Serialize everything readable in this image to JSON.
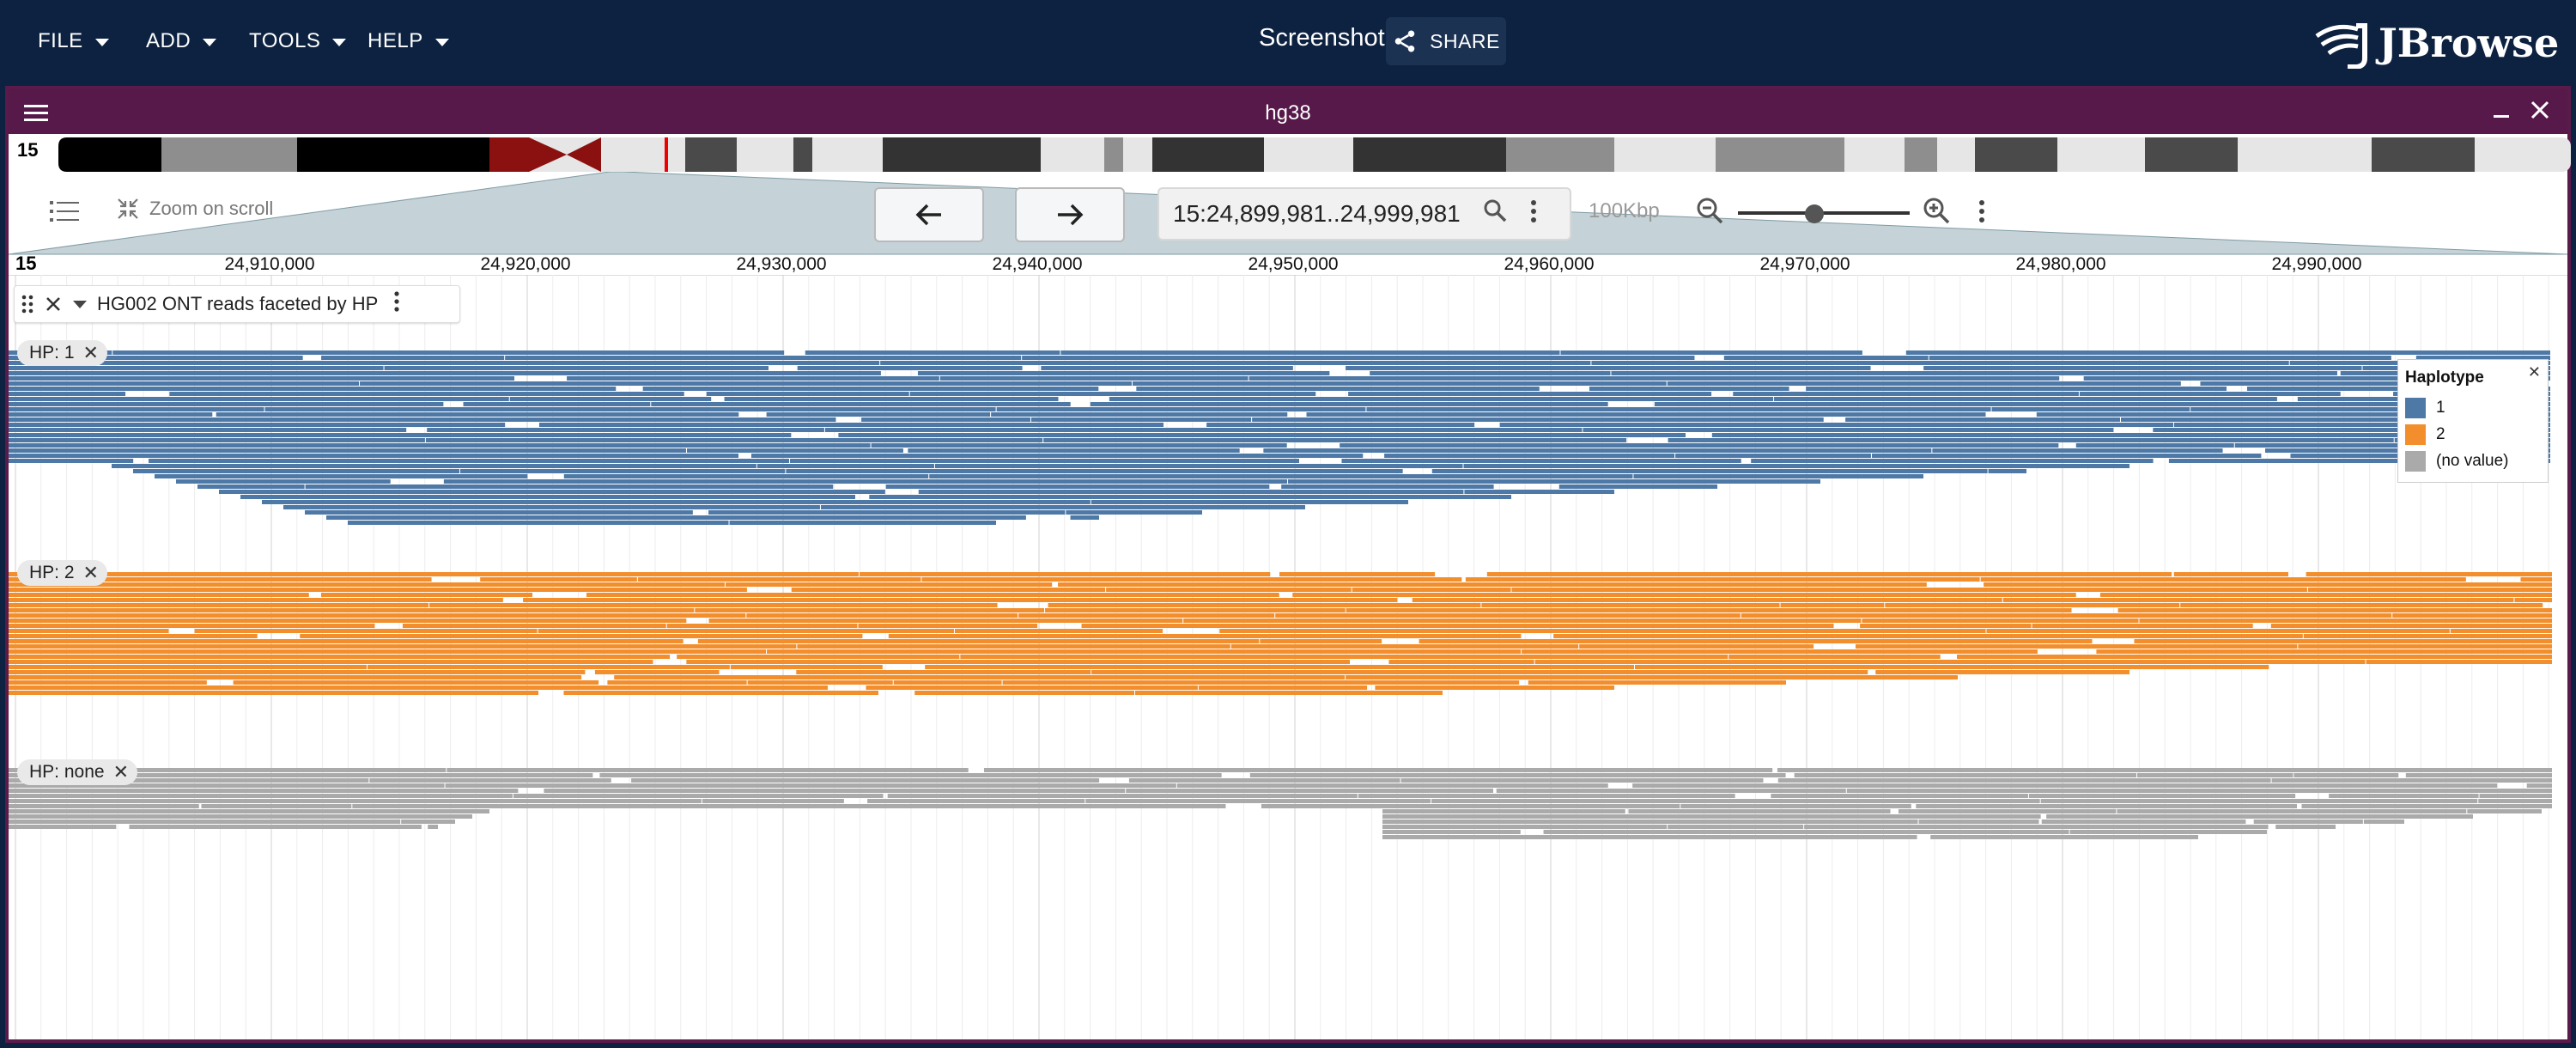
{
  "menus": [
    "FILE",
    "ADD",
    "TOOLS",
    "HELP"
  ],
  "header": {
    "screenshot_label": "Screenshot",
    "share_label": "SHARE",
    "logo_text": "JBrowse"
  },
  "view": {
    "title": "hg38",
    "chromosome": "15",
    "zoom_on_scroll": "Zoom on scroll",
    "locstring": "15:24,899,981..24,999,981",
    "bp_per_view": "100Kbp",
    "ruler_ticks": [
      "24,910,000",
      "24,920,000",
      "24,930,000",
      "24,940,000",
      "24,950,000",
      "24,960,000",
      "24,970,000",
      "24,980,000",
      "24,990,000"
    ]
  },
  "track": {
    "name": "HG002 ONT reads faceted by HP",
    "facets": [
      {
        "label": "HP: 1",
        "color": "#4e79a7"
      },
      {
        "label": "HP: 2",
        "color": "#f28e2b"
      },
      {
        "label": "HP: none",
        "color": "#aaaaaa"
      }
    ]
  },
  "legend": {
    "title": "Haplotype",
    "items": [
      {
        "label": "1",
        "color": "#4e79a7"
      },
      {
        "label": "2",
        "color": "#f28e2b"
      },
      {
        "label": "(no value)",
        "color": "#aaaaaa"
      }
    ]
  },
  "colors": {
    "appbar": "#0d2240",
    "view_header": "#57184a",
    "hp1": "#4e79a7",
    "hp2": "#f28e2b",
    "hpnone": "#aaaaaa"
  }
}
